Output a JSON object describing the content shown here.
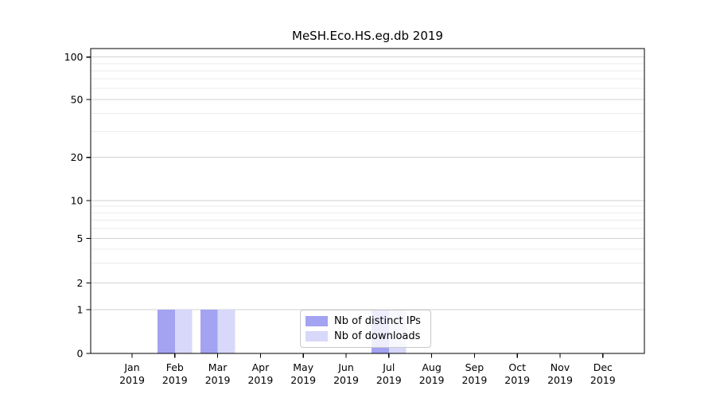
{
  "chart_data": {
    "type": "bar",
    "title": "MeSH.Eco.HS.eg.db 2019",
    "x_categories": [
      "Jan",
      "Feb",
      "Mar",
      "Apr",
      "May",
      "Jun",
      "Jul",
      "Aug",
      "Sep",
      "Oct",
      "Nov",
      "Dec"
    ],
    "x_year": "2019",
    "series": [
      {
        "name": "Nb of distinct IPs",
        "color": "#a3a3f2",
        "values": [
          0,
          1,
          1,
          0,
          0,
          0,
          1,
          0,
          0,
          0,
          0,
          0
        ]
      },
      {
        "name": "Nb of downloads",
        "color": "#d8d8fa",
        "values": [
          0,
          1,
          1,
          0,
          0,
          0,
          1,
          0,
          0,
          0,
          0,
          0
        ]
      }
    ],
    "y_axis": {
      "scale": "log-like (linear 0-1, compressed log above)",
      "ticks": [
        0,
        1,
        2,
        5,
        10,
        20,
        50,
        100
      ],
      "minor_gridlines": [
        3,
        4,
        6,
        7,
        8,
        9,
        30,
        40,
        60,
        70,
        80,
        90
      ],
      "range": [
        0,
        115
      ]
    },
    "legend": {
      "entries": [
        "Nb of distinct IPs",
        "Nb of downloads"
      ],
      "position": "lower center"
    },
    "grid": {
      "major_color": "#d2d2d2",
      "minor_color": "#ebebeb",
      "spine_color": "#000000"
    }
  }
}
